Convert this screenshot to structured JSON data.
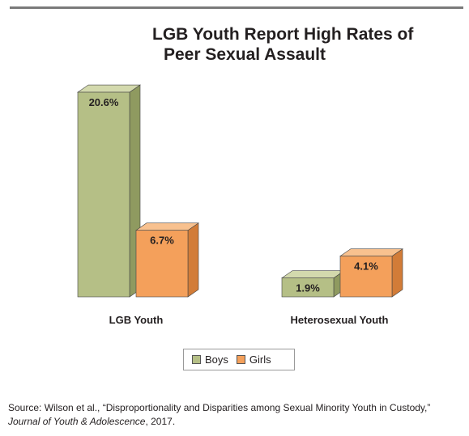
{
  "title_line1": "LGB Youth Report High Rates of",
  "title_line2": "Peer Sexual Assault",
  "colors": {
    "boys": "#b5bf86",
    "boys_side": "#8f9a60",
    "boys_top": "#d3d9ad",
    "girls": "#f4a05b",
    "girls_side": "#d27c38",
    "girls_top": "#f8c18f"
  },
  "chart_data": {
    "type": "bar",
    "title": "LGB Youth Report High Rates of Peer Sexual Assault",
    "categories": [
      "LGB Youth",
      "Heterosexual Youth"
    ],
    "series": [
      {
        "name": "Boys",
        "values": [
          20.6,
          1.9
        ],
        "labels": [
          "20.6%",
          "1.9%"
        ]
      },
      {
        "name": "Girls",
        "values": [
          6.7,
          4.1
        ],
        "labels": [
          "6.7%",
          "4.1%"
        ]
      }
    ],
    "unit": "%",
    "legend_position": "bottom",
    "grid": false,
    "three_d": true
  },
  "legend": {
    "boys_label": "Boys",
    "girls_label": "Girls"
  },
  "source": {
    "prefix": "Source: Wilson et al., “Disproportionality and Disparities among Sexual Minority Youth in Custody,”",
    "journal": "Journal of Youth & Adolescence",
    "year": ", 2017."
  }
}
